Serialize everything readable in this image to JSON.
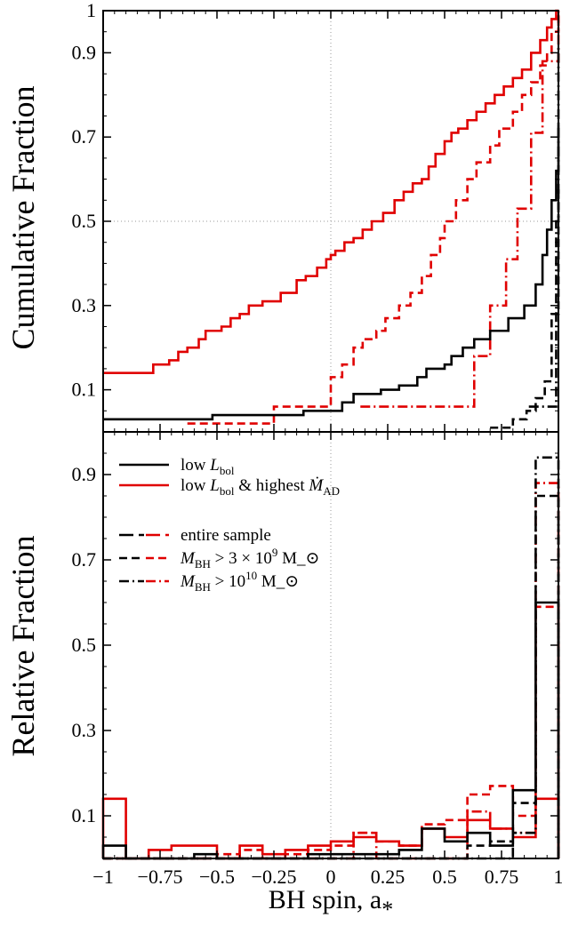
{
  "chart_data": [
    {
      "type": "line",
      "panel": "top",
      "ylabel": "Cumulative Fraction",
      "xlim": [
        -1,
        1
      ],
      "ylim": [
        0,
        1
      ],
      "yticks": [
        "0.1",
        "0.3",
        "0.5",
        "0.7",
        "0.9",
        "1"
      ],
      "grid": "dotted reference lines at x=0 and y=0.5",
      "series": [
        {
          "color": "#e00000",
          "style": "solid",
          "x": [
            -1,
            -0.78,
            -0.71,
            -0.67,
            -0.63,
            -0.58,
            -0.55,
            -0.48,
            -0.44,
            -0.4,
            -0.36,
            -0.3,
            -0.22,
            -0.15,
            -0.11,
            -0.06,
            -0.02,
            0,
            0.02,
            0.06,
            0.1,
            0.14,
            0.18,
            0.23,
            0.28,
            0.32,
            0.36,
            0.4,
            0.43,
            0.46,
            0.5,
            0.53,
            0.56,
            0.6,
            0.64,
            0.68,
            0.72,
            0.76,
            0.8,
            0.84,
            0.88,
            0.92,
            0.95,
            0.97,
            0.99,
            1
          ],
          "y": [
            0.14,
            0.16,
            0.17,
            0.19,
            0.2,
            0.22,
            0.24,
            0.25,
            0.27,
            0.28,
            0.3,
            0.31,
            0.33,
            0.36,
            0.37,
            0.39,
            0.41,
            0.42,
            0.43,
            0.45,
            0.46,
            0.48,
            0.5,
            0.52,
            0.55,
            0.57,
            0.59,
            0.6,
            0.63,
            0.66,
            0.69,
            0.71,
            0.72,
            0.74,
            0.76,
            0.78,
            0.8,
            0.82,
            0.84,
            0.86,
            0.9,
            0.93,
            0.96,
            0.98,
            1,
            1
          ]
        },
        {
          "color": "#e00000",
          "style": "dashed",
          "x": [
            -0.63,
            -0.25,
            0,
            0.05,
            0.1,
            0.14,
            0.2,
            0.24,
            0.3,
            0.35,
            0.4,
            0.44,
            0.48,
            0.5,
            0.55,
            0.6,
            0.64,
            0.7,
            0.74,
            0.8,
            0.84,
            0.88,
            0.92,
            0.95,
            0.97,
            1
          ],
          "y": [
            0.02,
            0.06,
            0.13,
            0.16,
            0.2,
            0.22,
            0.24,
            0.27,
            0.3,
            0.33,
            0.37,
            0.42,
            0.46,
            0.5,
            0.55,
            0.6,
            0.64,
            0.68,
            0.72,
            0.76,
            0.8,
            0.83,
            0.87,
            0.9,
            0.95,
            1
          ]
        },
        {
          "color": "#e00000",
          "style": "dashdot",
          "x": [
            0.13,
            0.63,
            0.7,
            0.77,
            0.82,
            0.88,
            0.93,
            1
          ],
          "y": [
            0.06,
            0.18,
            0.3,
            0.41,
            0.53,
            0.71,
            0.88,
            1
          ]
        },
        {
          "color": "#000000",
          "style": "solid",
          "x": [
            -1,
            -0.52,
            -0.12,
            0.05,
            0.1,
            0.22,
            0.3,
            0.38,
            0.42,
            0.5,
            0.53,
            0.58,
            0.63,
            0.7,
            0.78,
            0.85,
            0.9,
            0.93,
            0.95,
            0.97,
            0.99,
            1
          ],
          "y": [
            0.03,
            0.04,
            0.05,
            0.07,
            0.09,
            0.1,
            0.11,
            0.13,
            0.15,
            0.16,
            0.18,
            0.2,
            0.22,
            0.24,
            0.27,
            0.3,
            0.35,
            0.42,
            0.48,
            0.55,
            0.62,
            0.73
          ]
        },
        {
          "color": "#000000",
          "style": "dashed",
          "x": [
            0.7,
            0.8,
            0.86,
            0.9,
            0.94,
            0.97,
            1
          ],
          "y": [
            0.01,
            0.03,
            0.05,
            0.08,
            0.12,
            0.28,
            0.58
          ]
        },
        {
          "color": "#000000",
          "style": "dashdot",
          "x": [
            0.87,
            0.93,
            0.99,
            1
          ],
          "y": [
            0.06,
            0.06,
            0.5,
            0.92
          ]
        }
      ]
    },
    {
      "type": "bar",
      "panel": "bottom",
      "subtype": "step histogram",
      "xlabel": "BH spin, a_*",
      "ylabel": "Relative Fraction",
      "xlim": [
        -1,
        1
      ],
      "ylim": [
        0,
        1
      ],
      "xticks": [
        "−1",
        "−0.75",
        "−0.5",
        "−0.25",
        "0",
        "0.25",
        "0.5",
        "0.75",
        "1"
      ],
      "yticks": [
        "0.1",
        "0.3",
        "0.5",
        "0.7",
        "0.9"
      ],
      "bin_edges": [
        -1,
        -0.9,
        -0.8,
        -0.7,
        -0.6,
        -0.5,
        -0.4,
        -0.3,
        -0.2,
        -0.1,
        0,
        0.1,
        0.2,
        0.3,
        0.4,
        0.5,
        0.6,
        0.7,
        0.8,
        0.9,
        1
      ],
      "series": [
        {
          "color": "#e00000",
          "style": "solid",
          "values": [
            0.14,
            0,
            0.02,
            0.03,
            0.03,
            0,
            0.03,
            0.01,
            0.02,
            0.03,
            0.04,
            0.05,
            0.04,
            0.03,
            0.07,
            0.05,
            0.09,
            0.07,
            0.05,
            0.14
          ]
        },
        {
          "color": "#e00000",
          "style": "dashed",
          "values": [
            0,
            0,
            0,
            0,
            0,
            0.01,
            0.02,
            0,
            0.01,
            0.02,
            0.03,
            0.06,
            0.04,
            0.03,
            0.08,
            0.09,
            0.15,
            0.17,
            0.1,
            0.59
          ]
        },
        {
          "color": "#e00000",
          "style": "dashdot",
          "values": [
            0,
            0,
            0,
            0,
            0,
            0,
            0,
            0,
            0,
            0,
            0,
            0.06,
            0,
            0,
            0,
            0,
            0.11,
            0.07,
            0.06,
            0.88
          ]
        },
        {
          "color": "#000000",
          "style": "solid",
          "values": [
            0.03,
            0,
            0,
            0,
            0.01,
            0,
            0,
            0,
            0,
            0.01,
            0.01,
            0.01,
            0.01,
            0.02,
            0.07,
            0.04,
            0.06,
            0.03,
            0.16,
            0.6
          ]
        },
        {
          "color": "#000000",
          "style": "dashed",
          "values": [
            0,
            0,
            0,
            0,
            0,
            0,
            0,
            0,
            0,
            0,
            0,
            0,
            0,
            0,
            0,
            0,
            0.03,
            0.04,
            0.13,
            0.85
          ]
        },
        {
          "color": "#000000",
          "style": "dashdot",
          "values": [
            0,
            0,
            0,
            0,
            0,
            0,
            0,
            0,
            0,
            0,
            0,
            0,
            0,
            0,
            0,
            0,
            0,
            0,
            0.06,
            0.94
          ]
        }
      ],
      "legend": {
        "placement": "top-left",
        "color_entries": [
          {
            "color": "#000000",
            "label": "low L_bol"
          },
          {
            "color": "#e00000",
            "label": "low L_bol & highest Ṁ_AD"
          }
        ],
        "style_entries": [
          {
            "style": "long-dash",
            "label": "entire sample"
          },
          {
            "style": "dashed",
            "label": "M_BH > 3 × 10^9 M_⊙"
          },
          {
            "style": "dashdot",
            "label": "M_BH > 10^10 M_⊙"
          }
        ]
      }
    }
  ]
}
